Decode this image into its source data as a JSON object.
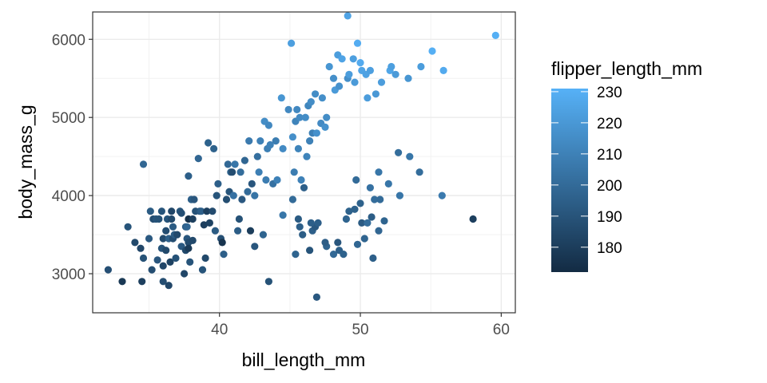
{
  "chart_data": {
    "type": "scatter",
    "title": "",
    "xlabel": "bill_length_mm",
    "ylabel": "body_mass_g",
    "xlim": [
      31.0,
      61.0
    ],
    "ylim": [
      2500,
      6350
    ],
    "x_ticks": [
      40,
      50,
      60
    ],
    "y_ticks": [
      3000,
      4000,
      5000,
      6000
    ],
    "x_tick_labels": [
      "40",
      "50",
      "60"
    ],
    "y_tick_labels": [
      "3000",
      "4000",
      "5000",
      "6000"
    ],
    "grid": true,
    "legend": {
      "title": "flipper_length_mm",
      "placement": "right",
      "type": "colorbar",
      "range": [
        172,
        231
      ],
      "ticks": [
        180,
        190,
        200,
        210,
        220,
        230
      ],
      "tick_labels": [
        "180",
        "190",
        "200",
        "210",
        "220",
        "230"
      ],
      "color_low": "#132b43",
      "color_high": "#56b1f7"
    },
    "points": [
      [
        32.1,
        3050,
        188
      ],
      [
        33.1,
        2900,
        178
      ],
      [
        33.5,
        3600,
        190
      ],
      [
        34.0,
        3400,
        185
      ],
      [
        34.4,
        3325,
        184
      ],
      [
        34.5,
        2900,
        181
      ],
      [
        34.6,
        4400,
        198
      ],
      [
        34.6,
        3200,
        189
      ],
      [
        35.0,
        3450,
        192
      ],
      [
        35.1,
        3800,
        193
      ],
      [
        35.2,
        3050,
        187
      ],
      [
        35.3,
        3700,
        187
      ],
      [
        35.5,
        3700,
        190
      ],
      [
        35.6,
        3175,
        191
      ],
      [
        35.7,
        3700,
        189
      ],
      [
        35.9,
        3800,
        190
      ],
      [
        35.9,
        3325,
        190
      ],
      [
        36.0,
        3450,
        186
      ],
      [
        36.0,
        2900,
        187
      ],
      [
        36.0,
        3100,
        184
      ],
      [
        36.2,
        3300,
        185
      ],
      [
        36.2,
        3550,
        187
      ],
      [
        36.3,
        3700,
        190
      ],
      [
        36.4,
        3450,
        195
      ],
      [
        36.4,
        2850,
        184
      ],
      [
        36.5,
        3150,
        182
      ],
      [
        36.6,
        3700,
        185
      ],
      [
        36.6,
        3800,
        184
      ],
      [
        36.7,
        3450,
        187
      ],
      [
        36.7,
        3600,
        193
      ],
      [
        36.8,
        3500,
        193
      ],
      [
        36.9,
        3200,
        189
      ],
      [
        37.0,
        3500,
        185
      ],
      [
        37.2,
        3800,
        190
      ],
      [
        37.3,
        3350,
        192
      ],
      [
        37.3,
        3775,
        188
      ],
      [
        37.5,
        3000,
        184
      ],
      [
        37.6,
        3300,
        185
      ],
      [
        37.6,
        3600,
        194
      ],
      [
        37.7,
        3600,
        198
      ],
      [
        37.7,
        3450,
        191
      ],
      [
        37.8,
        3400,
        186
      ],
      [
        37.8,
        3700,
        174
      ],
      [
        37.8,
        4250,
        195
      ],
      [
        37.8,
        3325,
        179
      ],
      [
        37.9,
        3150,
        190
      ],
      [
        38.0,
        3950,
        195
      ],
      [
        38.1,
        3700,
        181
      ],
      [
        38.1,
        3425,
        185
      ],
      [
        38.2,
        3950,
        191
      ],
      [
        38.3,
        3800,
        189
      ],
      [
        38.5,
        4475,
        198
      ],
      [
        38.6,
        3800,
        191
      ],
      [
        38.7,
        3800,
        195
      ],
      [
        38.8,
        3050,
        190
      ],
      [
        38.9,
        3625,
        181
      ],
      [
        39.0,
        3200,
        185
      ],
      [
        39.1,
        3800,
        181
      ],
      [
        39.2,
        4675,
        196
      ],
      [
        39.3,
        3650,
        182
      ],
      [
        39.5,
        3800,
        186
      ],
      [
        39.6,
        4600,
        196
      ],
      [
        39.7,
        3550,
        193
      ],
      [
        39.8,
        4000,
        190
      ],
      [
        39.9,
        4150,
        195
      ],
      [
        40.1,
        3450,
        188
      ],
      [
        40.2,
        3400,
        176
      ],
      [
        40.3,
        3250,
        195
      ],
      [
        40.5,
        3950,
        187
      ],
      [
        40.6,
        4400,
        199
      ],
      [
        40.7,
        4050,
        190
      ],
      [
        40.8,
        4300,
        196
      ],
      [
        40.9,
        4300,
        187
      ],
      [
        41.0,
        4000,
        203
      ],
      [
        41.1,
        4400,
        205
      ],
      [
        41.3,
        3550,
        194
      ],
      [
        41.4,
        3700,
        189
      ],
      [
        41.5,
        4300,
        201
      ],
      [
        41.6,
        3950,
        192
      ],
      [
        41.8,
        4450,
        198
      ],
      [
        42.0,
        4050,
        200
      ],
      [
        42.1,
        4700,
        207
      ],
      [
        42.2,
        3550,
        180
      ],
      [
        42.3,
        4150,
        191
      ],
      [
        42.5,
        4000,
        204
      ],
      [
        42.7,
        4500,
        202
      ],
      [
        42.8,
        4300,
        209
      ],
      [
        42.9,
        4700,
        210
      ],
      [
        43.1,
        3500,
        197
      ],
      [
        43.2,
        4950,
        215
      ],
      [
        43.3,
        4200,
        208
      ],
      [
        43.4,
        4600,
        209
      ],
      [
        43.5,
        4900,
        213
      ],
      [
        43.6,
        4650,
        210
      ],
      [
        43.8,
        4150,
        203
      ],
      [
        44.0,
        4700,
        208
      ],
      [
        44.1,
        4200,
        210
      ],
      [
        44.4,
        5250,
        219
      ],
      [
        44.5,
        4600,
        214
      ],
      [
        44.9,
        5100,
        213
      ],
      [
        45.1,
        5950,
        223
      ],
      [
        45.2,
        4750,
        216
      ],
      [
        45.3,
        4300,
        208
      ],
      [
        45.4,
        4950,
        211
      ],
      [
        45.5,
        5100,
        213
      ],
      [
        45.6,
        4600,
        211
      ],
      [
        45.7,
        5000,
        214
      ],
      [
        45.8,
        4200,
        210
      ],
      [
        46.1,
        5000,
        215
      ],
      [
        46.2,
        4500,
        211
      ],
      [
        46.3,
        5150,
        212
      ],
      [
        46.4,
        4700,
        210
      ],
      [
        46.5,
        5200,
        215
      ],
      [
        46.6,
        4800,
        210
      ],
      [
        46.8,
        5300,
        215
      ],
      [
        46.9,
        4800,
        217
      ],
      [
        47.2,
        4925,
        214
      ],
      [
        47.3,
        5250,
        216
      ],
      [
        47.5,
        4875,
        217
      ],
      [
        47.6,
        5000,
        215
      ],
      [
        47.8,
        5650,
        219
      ],
      [
        48.1,
        5500,
        216
      ],
      [
        48.2,
        5350,
        221
      ],
      [
        48.4,
        5800,
        222
      ],
      [
        48.5,
        5400,
        217
      ],
      [
        48.7,
        5750,
        225
      ],
      [
        49.1,
        5500,
        216
      ],
      [
        49.1,
        6300,
        225
      ],
      [
        49.2,
        5550,
        222
      ],
      [
        49.5,
        5750,
        223
      ],
      [
        49.6,
        5450,
        221
      ],
      [
        49.8,
        5950,
        229
      ],
      [
        50.0,
        5700,
        228
      ],
      [
        50.1,
        5600,
        225
      ],
      [
        50.4,
        5550,
        224
      ],
      [
        50.5,
        5250,
        222
      ],
      [
        50.7,
        5600,
        223
      ],
      [
        51.1,
        5300,
        220
      ],
      [
        51.5,
        5450,
        222
      ],
      [
        52.1,
        5600,
        226
      ],
      [
        52.2,
        5650,
        223
      ],
      [
        52.5,
        5550,
        221
      ],
      [
        53.4,
        5500,
        219
      ],
      [
        54.3,
        5650,
        222
      ],
      [
        55.1,
        5850,
        230
      ],
      [
        55.9,
        5600,
        228
      ],
      [
        59.6,
        6050,
        230
      ],
      [
        44.5,
        3750,
        205
      ],
      [
        45.2,
        3950,
        200
      ],
      [
        45.6,
        3700,
        193
      ],
      [
        46.0,
        4100,
        195
      ],
      [
        46.6,
        3550,
        195
      ],
      [
        46.8,
        3600,
        192
      ],
      [
        47.0,
        3650,
        195
      ],
      [
        47.6,
        3350,
        197
      ],
      [
        48.1,
        3250,
        199
      ],
      [
        48.5,
        3300,
        195
      ],
      [
        48.8,
        3250,
        196
      ],
      [
        49.0,
        3700,
        197
      ],
      [
        49.2,
        3800,
        196
      ],
      [
        49.6,
        3825,
        196
      ],
      [
        49.8,
        3375,
        198
      ],
      [
        50.0,
        3900,
        196
      ],
      [
        50.1,
        3650,
        193
      ],
      [
        50.3,
        3450,
        197
      ],
      [
        50.5,
        3650,
        201
      ],
      [
        50.7,
        4100,
        203
      ],
      [
        50.8,
        3725,
        194
      ],
      [
        50.9,
        3200,
        195
      ],
      [
        51.0,
        3950,
        201
      ],
      [
        51.3,
        3550,
        198
      ],
      [
        51.4,
        3950,
        200
      ],
      [
        51.7,
        3675,
        197
      ],
      [
        52.0,
        4150,
        205
      ],
      [
        52.7,
        4550,
        201
      ],
      [
        53.5,
        4500,
        205
      ],
      [
        54.2,
        4300,
        201
      ],
      [
        55.8,
        4000,
        207
      ],
      [
        58.0,
        3700,
        181
      ],
      [
        45.4,
        3250,
        197
      ],
      [
        46.5,
        3650,
        195
      ],
      [
        42.5,
        3350,
        191
      ],
      [
        43.5,
        2900,
        189
      ],
      [
        46.9,
        2700,
        192
      ],
      [
        45.9,
        3500,
        194
      ],
      [
        46.4,
        3300,
        190
      ],
      [
        47.5,
        3400,
        194
      ],
      [
        48.4,
        3400,
        191
      ],
      [
        49.7,
        4200,
        200
      ],
      [
        51.3,
        4300,
        205
      ],
      [
        52.8,
        4000,
        205
      ],
      [
        45.7,
        3600,
        195
      ]
    ]
  }
}
